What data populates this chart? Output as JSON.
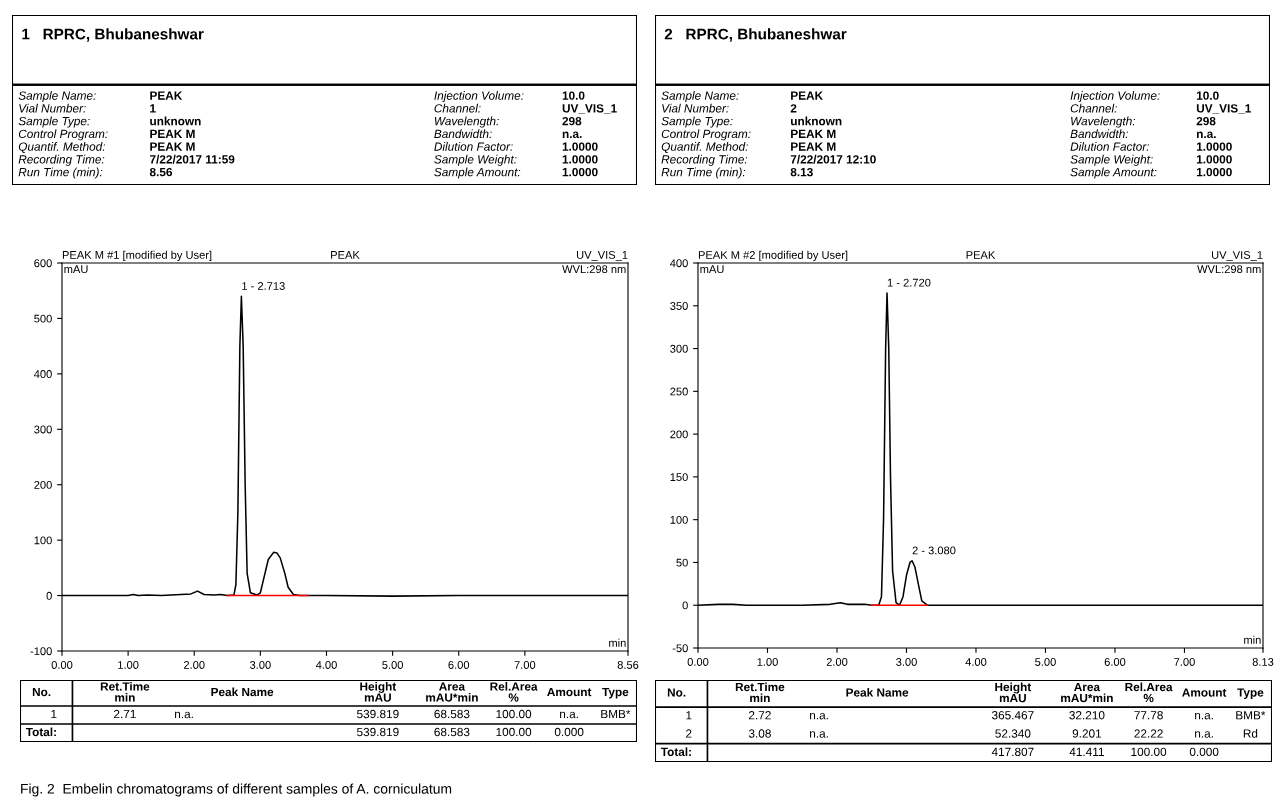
{
  "chart_data": [
    {
      "type": "other",
      "title": "1   RPRC, Bhubaneshwar",
      "annotations": [
        "Sample Name:",
        "PEAK",
        "Vial Number:",
        "1",
        "Sample Type:",
        "unknown",
        "Control Program:",
        "PEAK M",
        "Quantif. Method:",
        "PEAK M",
        "Recording Time:",
        "7/22/2017 11:59",
        "Run Time (min):",
        "8.56",
        "Injection Volume:",
        "10.0",
        "Channel:",
        "UV_VIS_1",
        "Wavelength:",
        "298",
        "Bandwidth:",
        "n.a.",
        "Dilution Factor:",
        "1.0000",
        "Sample Weight:",
        "1.0000",
        "Sample Amount:",
        "1.0000"
      ]
    },
    {
      "type": "line",
      "title": "PEAK",
      "xlabel": "min",
      "ylabel": "mAU",
      "xlim": [
        0,
        8.56
      ],
      "ylim": [
        -100,
        600
      ],
      "xticks": [
        {
          "value": 0,
          "label": "0.00"
        },
        {
          "value": 1,
          "label": "1.00"
        },
        {
          "value": 2,
          "label": "2.00"
        },
        {
          "value": 3,
          "label": "3.00"
        },
        {
          "value": 4,
          "label": "4.00"
        },
        {
          "value": 5,
          "label": "5.00"
        },
        {
          "value": 6,
          "label": "6.00"
        },
        {
          "value": 7,
          "label": "7.00"
        },
        {
          "value": 8.56,
          "label": "8.56"
        }
      ],
      "yticks": [
        -100,
        0,
        100,
        200,
        300,
        400,
        500,
        600
      ],
      "annotations": [
        "PEAK M #1 [modified by User]",
        "UV_VIS_1",
        "WVL:298 nm",
        {
          "text": "1 - 2.713",
          "x": 2.713,
          "y": 540
        }
      ],
      "series": [
        {
          "type": "line",
          "color": "#000000",
          "x": [
            0,
            0.5,
            1.0,
            1.08,
            1.15,
            1.3,
            1.5,
            1.8,
            1.95,
            2.05,
            2.15,
            2.3,
            2.4,
            2.5,
            2.6,
            2.63,
            2.66,
            2.69,
            2.713,
            2.74,
            2.77,
            2.8,
            2.85,
            2.95,
            3.0,
            3.05,
            3.12,
            3.2,
            3.25,
            3.3,
            3.37,
            3.42,
            3.5,
            3.6,
            4.0,
            5.0,
            6.0,
            7.0,
            8.56
          ],
          "values": [
            0,
            0,
            0,
            2,
            0,
            1,
            0,
            2,
            3,
            8,
            2,
            1,
            2,
            0,
            1,
            20,
            150,
            450,
            540,
            450,
            200,
            40,
            5,
            1,
            5,
            30,
            65,
            78,
            77,
            68,
            40,
            15,
            2,
            0,
            0,
            -1,
            0,
            0,
            0
          ]
        },
        {
          "type": "line",
          "color": "#ff0000",
          "x": [
            2.5,
            3.72
          ],
          "values": [
            0,
            0
          ]
        }
      ]
    },
    {
      "type": "other",
      "categories": [
        "No.",
        "Ret.Time\nmin",
        "Peak Name",
        "Height\nmAU",
        "Area\nmAU*min",
        "Rel.Area\n%",
        "Amount",
        "Type"
      ],
      "cell_labels": [
        [
          "1",
          "2.71",
          "n.a.",
          "539.819",
          "68.583",
          "100.00",
          "n.a.",
          "BMB*"
        ],
        [
          "Total:",
          null,
          null,
          "539.819",
          "68.583",
          "100.00",
          "0.000",
          null
        ]
      ]
    },
    {
      "type": "other",
      "title": "2   RPRC, Bhubaneshwar",
      "annotations": [
        "Sample Name:",
        "PEAK",
        "Vial Number:",
        "2",
        "Sample Type:",
        "unknown",
        "Control Program:",
        "PEAK M",
        "Quantif. Method:",
        "PEAK M",
        "Recording Time:",
        "7/22/2017 12:10",
        "Run Time (min):",
        "8.13",
        "Injection Volume:",
        "10.0",
        "Channel:",
        "UV_VIS_1",
        "Wavelength:",
        "298",
        "Bandwidth:",
        "n.a.",
        "Dilution Factor:",
        "1.0000",
        "Sample Weight:",
        "1.0000",
        "Sample Amount:",
        "1.0000"
      ]
    },
    {
      "type": "line",
      "title": "PEAK",
      "xlabel": "min",
      "ylabel": "mAU",
      "xlim": [
        0,
        8.13
      ],
      "ylim": [
        -50,
        400
      ],
      "xticks": [
        {
          "value": 0,
          "label": "0.00"
        },
        {
          "value": 1,
          "label": "1.00"
        },
        {
          "value": 2,
          "label": "2.00"
        },
        {
          "value": 3,
          "label": "3.00"
        },
        {
          "value": 4,
          "label": "4.00"
        },
        {
          "value": 5,
          "label": "5.00"
        },
        {
          "value": 6,
          "label": "6.00"
        },
        {
          "value": 7,
          "label": "7.00"
        },
        {
          "value": 8.13,
          "label": "8.13"
        }
      ],
      "yticks": [
        -50,
        0,
        50,
        100,
        150,
        200,
        250,
        300,
        350,
        400
      ],
      "annotations": [
        "PEAK M #2 [modified by User]",
        "UV_VIS_1",
        "WVL:298 nm",
        {
          "text": "1 - 2.720",
          "x": 2.72,
          "y": 365
        },
        {
          "text": "2 - 3.080",
          "x": 3.08,
          "y": 52
        }
      ],
      "series": [
        {
          "type": "line",
          "color": "#000000",
          "x": [
            0,
            0.3,
            0.5,
            0.7,
            1.0,
            1.5,
            1.9,
            2.05,
            2.15,
            2.4,
            2.5,
            2.6,
            2.64,
            2.67,
            2.7,
            2.72,
            2.745,
            2.77,
            2.8,
            2.85,
            2.9,
            2.95,
            3.0,
            3.05,
            3.08,
            3.12,
            3.17,
            3.22,
            3.3,
            4.0,
            5.0,
            6.0,
            7.0,
            8.13
          ],
          "values": [
            0,
            1,
            1,
            0,
            0,
            0,
            1,
            3,
            1,
            1,
            0,
            0,
            10,
            100,
            300,
            365,
            300,
            150,
            40,
            3,
            0,
            10,
            35,
            50,
            52,
            45,
            25,
            5,
            0,
            0,
            0,
            0,
            0,
            0
          ]
        },
        {
          "type": "line",
          "color": "#ff0000",
          "x": [
            2.5,
            3.3
          ],
          "values": [
            0,
            0
          ]
        }
      ]
    },
    {
      "type": "other",
      "categories": [
        "No.",
        "Ret.Time\nmin",
        "Peak Name",
        "Height\nmAU",
        "Area\nmAU*min",
        "Rel.Area\n%",
        "Amount",
        "Type"
      ],
      "cell_labels": [
        [
          "1",
          "2.72",
          "n.a.",
          "365.467",
          "32.210",
          "77.78",
          "n.a.",
          "BMB*"
        ],
        [
          "2",
          "3.08",
          "n.a.",
          "52.340",
          "9.201",
          "22.22",
          "n.a.",
          "Rd"
        ],
        [
          "Total:",
          null,
          null,
          "417.807",
          "41.411",
          "100.00",
          "0.000",
          null
        ]
      ]
    },
    {
      "type": "other",
      "annotations": [
        "Fig. 2  Embelin chromatograms of different samples of A. corniculatum"
      ]
    }
  ]
}
